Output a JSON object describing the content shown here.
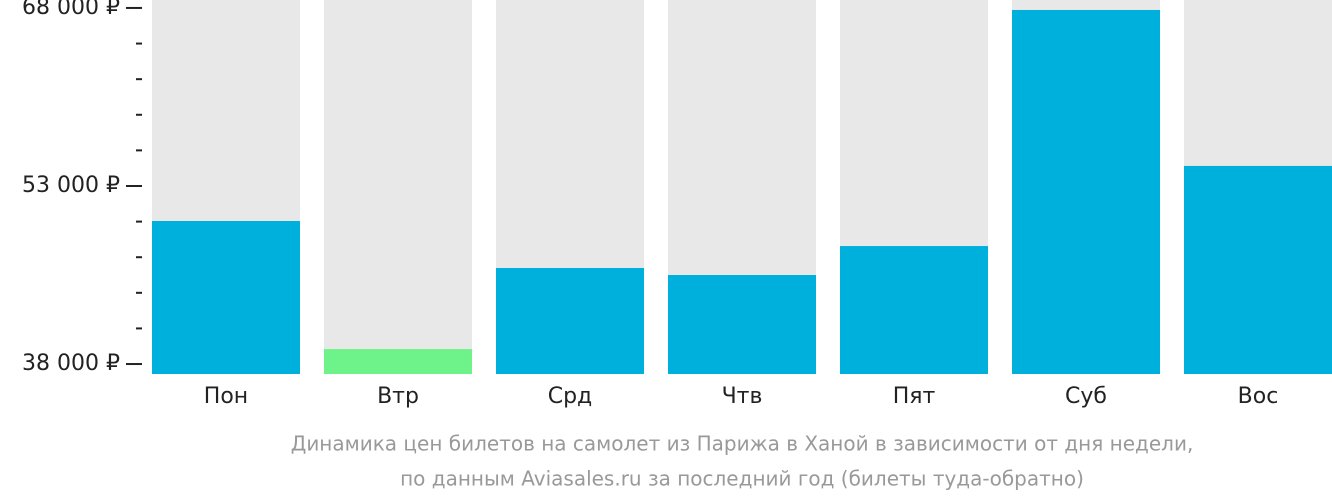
{
  "chart_data": {
    "type": "bar",
    "categories": [
      "Пон",
      "Втр",
      "Срд",
      "Чтв",
      "Пят",
      "Суб",
      "Вос"
    ],
    "values": [
      50050,
      39260,
      46090,
      45500,
      47940,
      67830,
      54690
    ],
    "colors": [
      "#00b0dc",
      "#6ef38a",
      "#00b0dc",
      "#00b0dc",
      "#00b0dc",
      "#00b0dc",
      "#00b0dc"
    ],
    "ylim": [
      37160,
      68670
    ],
    "yticks": [
      {
        "value": 38000,
        "label": "38 000 ₽"
      },
      {
        "value": 53000,
        "label": "53 000 ₽"
      },
      {
        "value": 68000,
        "label": "68 000 ₽"
      }
    ],
    "minor_yticks": [
      41000,
      44000,
      47000,
      50000,
      56000,
      59000,
      62000,
      65000
    ],
    "caption": [
      "Динамика цен билетов на самолет из Парижа в Ханой в зависимости от дня недели,",
      "по данным Aviasales.ru за последний год (билеты туда-обратно)"
    ]
  }
}
